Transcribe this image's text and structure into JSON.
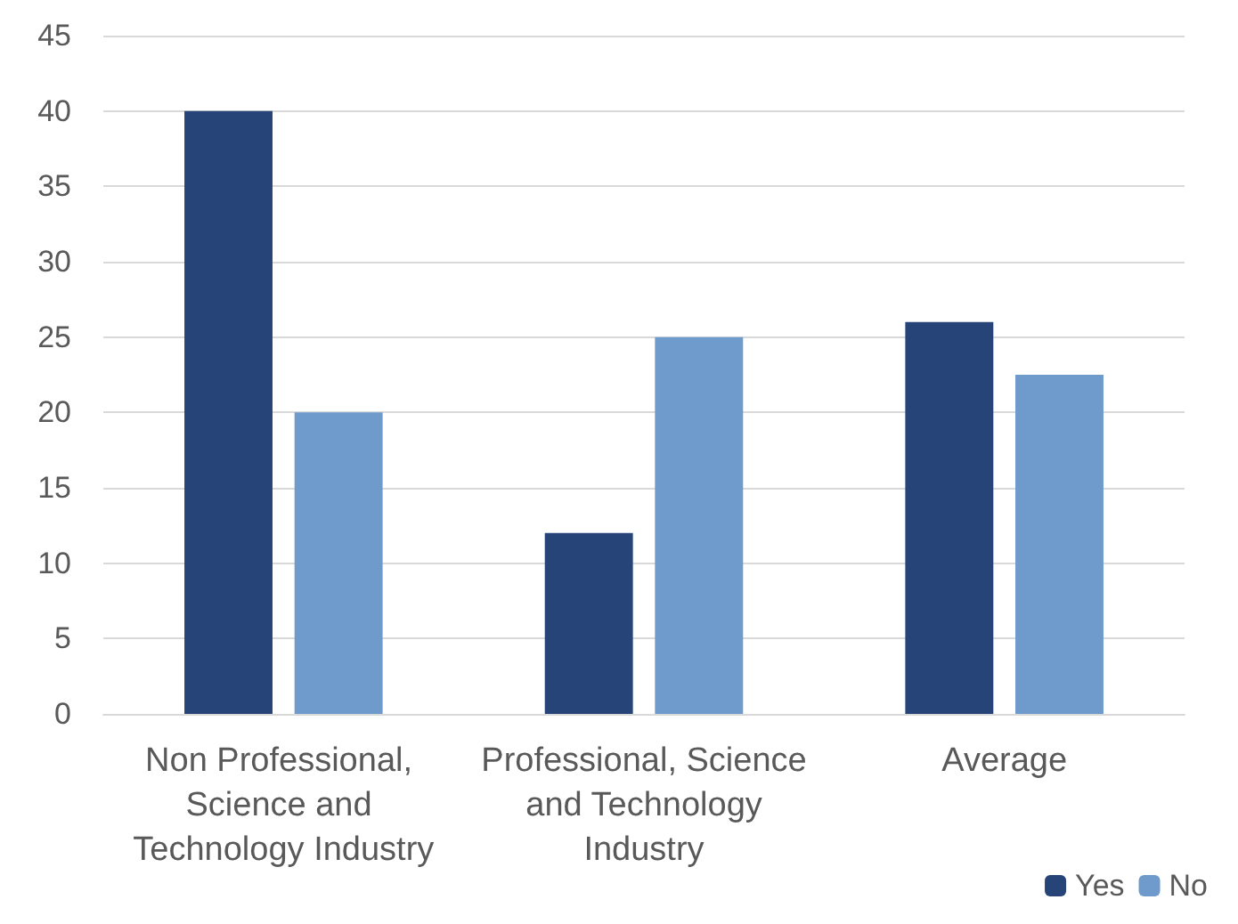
{
  "chart_data": {
    "type": "bar",
    "categories": [
      "Non Professional, Science and Technology Industry",
      "Professional, Science and Technology Industry",
      "Average"
    ],
    "series": [
      {
        "name": "Yes",
        "color": "#264478",
        "values": [
          40,
          12,
          26
        ]
      },
      {
        "name": "No",
        "color": "#6e9bcc",
        "values": [
          20,
          25,
          22.5
        ]
      }
    ],
    "ylim": [
      0,
      45
    ],
    "yticks": [
      0,
      5,
      10,
      15,
      20,
      25,
      30,
      35,
      40,
      45
    ],
    "grid": "y",
    "legend": "bottom right"
  }
}
